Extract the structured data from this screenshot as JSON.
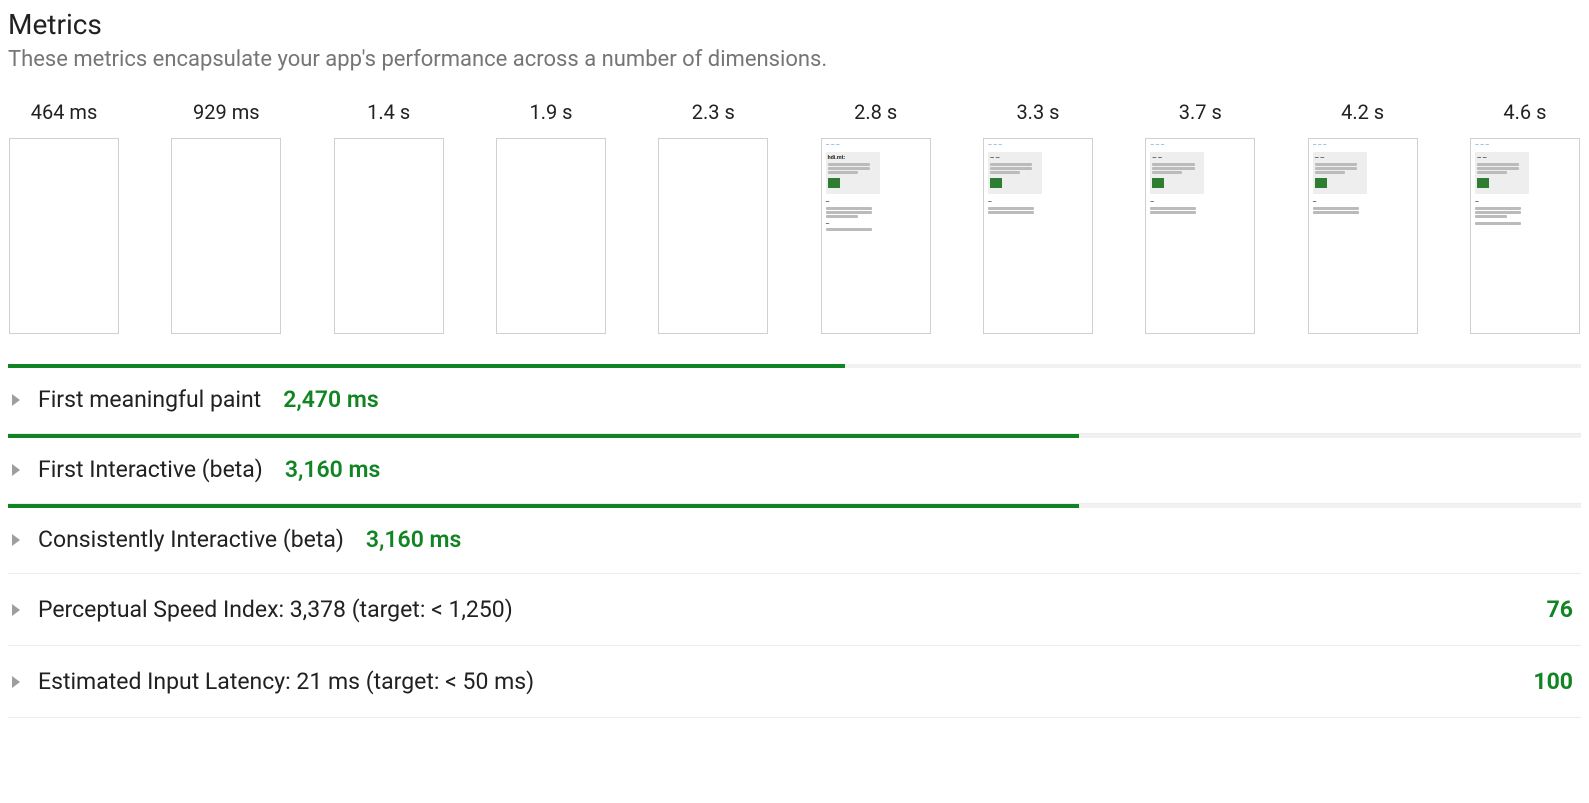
{
  "header": {
    "title": "Metrics",
    "subtitle": "These metrics encapsulate your app's performance across a number of dimensions."
  },
  "colors": {
    "accent_green": "#118424",
    "text_primary": "#212121",
    "text_secondary": "#757575",
    "track_bg": "#f1f1f1",
    "frame_border": "#d0d0d0"
  },
  "filmstrip": {
    "total_ms": 4640,
    "frames": [
      {
        "time_label": "464 ms",
        "has_content": false,
        "content_variant": "none"
      },
      {
        "time_label": "929 ms",
        "has_content": false,
        "content_variant": "none"
      },
      {
        "time_label": "1.4 s",
        "has_content": false,
        "content_variant": "none"
      },
      {
        "time_label": "1.9 s",
        "has_content": false,
        "content_variant": "none"
      },
      {
        "time_label": "2.3 s",
        "has_content": false,
        "content_variant": "none"
      },
      {
        "time_label": "2.8 s",
        "has_content": true,
        "content_variant": "partial"
      },
      {
        "time_label": "3.3 s",
        "has_content": true,
        "content_variant": "full"
      },
      {
        "time_label": "3.7 s",
        "has_content": true,
        "content_variant": "full"
      },
      {
        "time_label": "4.2 s",
        "has_content": true,
        "content_variant": "full"
      },
      {
        "time_label": "4.6 s",
        "has_content": true,
        "content_variant": "full_extra"
      }
    ]
  },
  "metrics": [
    {
      "label": "First meaningful paint",
      "value_text": "2,470 ms",
      "value_ms": 2470,
      "has_bar": true,
      "value_color": "green",
      "score": null
    },
    {
      "label": "First Interactive (beta)",
      "value_text": "3,160 ms",
      "value_ms": 3160,
      "has_bar": true,
      "value_color": "green",
      "score": null
    },
    {
      "label": "Consistently Interactive (beta)",
      "value_text": "3,160 ms",
      "value_ms": 3160,
      "has_bar": true,
      "value_color": "green",
      "score": null
    },
    {
      "label": "Perceptual Speed Index: 3,378 (target: < 1,250)",
      "value_text": null,
      "value_ms": null,
      "has_bar": false,
      "value_color": null,
      "score": "76"
    },
    {
      "label": "Estimated Input Latency: 21 ms (target: < 50 ms)",
      "value_text": null,
      "value_ms": null,
      "has_bar": false,
      "value_color": null,
      "score": "100"
    }
  ]
}
